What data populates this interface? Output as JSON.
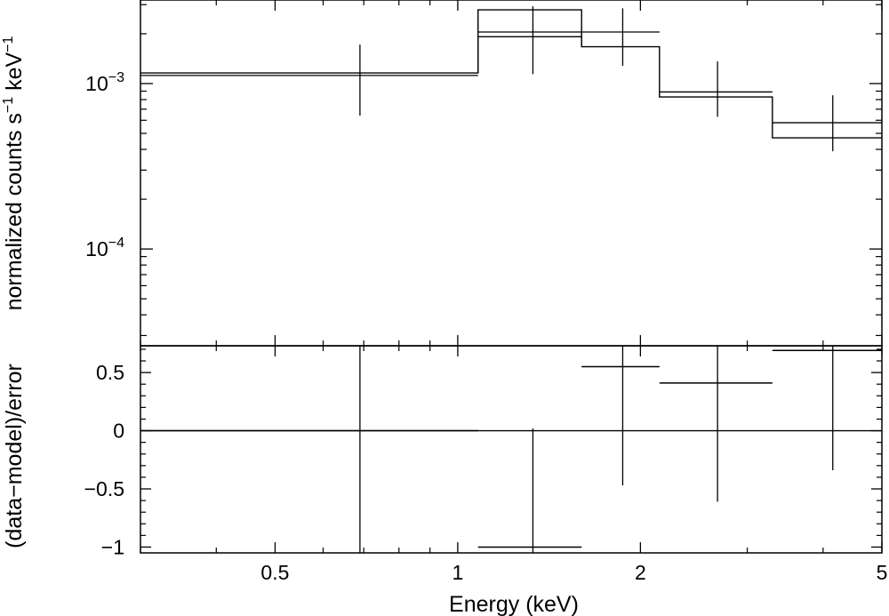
{
  "chart_data": [
    {
      "type": "scatter",
      "panel": "spectrum",
      "ylabel_parts": [
        "normalized counts s",
        "−1",
        " keV",
        "−1"
      ],
      "xscale": "log",
      "yscale": "log",
      "xlim": [
        0.3,
        5
      ],
      "ylim": [
        2.6e-05,
        0.0032
      ],
      "y_ticks": [
        {
          "value": 0.001,
          "base": "10",
          "exp": "−3"
        },
        {
          "value": 0.0001,
          "base": "10",
          "exp": "−4"
        }
      ],
      "data_points": [
        {
          "x": 0.69,
          "xlo": 0.3,
          "xhi": 1.08,
          "y": 0.00112,
          "ylo": 0.00064,
          "yhi": 0.00172
        },
        {
          "x": 1.33,
          "xlo": 1.08,
          "xhi": 1.6,
          "y": 0.00205,
          "ylo": 0.00114,
          "yhi": 0.00293
        },
        {
          "x": 1.87,
          "xlo": 1.6,
          "xhi": 2.15,
          "y": 0.00205,
          "ylo": 0.00128,
          "yhi": 0.00285
        },
        {
          "x": 2.68,
          "xlo": 2.15,
          "xhi": 3.3,
          "y": 0.00089,
          "ylo": 0.00063,
          "yhi": 0.00136
        },
        {
          "x": 4.15,
          "xlo": 3.3,
          "xhi": 5.0,
          "y": 0.00058,
          "ylo": 0.00039,
          "yhi": 0.00085
        }
      ],
      "model_steps": [
        {
          "xlo": 0.3,
          "xhi": 1.08,
          "y": 0.00116
        },
        {
          "xlo": 1.08,
          "xhi": 1.6,
          "y": 0.00192
        },
        {
          "xlo": 1.6,
          "xhi": 2.15,
          "y": 0.00167
        },
        {
          "xlo": 2.15,
          "xhi": 3.3,
          "y": 0.00083
        },
        {
          "xlo": 3.3,
          "xhi": 5.0,
          "y": 0.00047
        }
      ],
      "model_upper_step": {
        "xlo": 1.08,
        "xhi": 1.6,
        "y": 0.00279
      }
    },
    {
      "type": "scatter",
      "panel": "residuals",
      "ylabel": "(data−model)/error",
      "xlabel": "Energy (keV)",
      "xscale": "log",
      "xlim": [
        0.3,
        5
      ],
      "ylim": [
        -1.05,
        0.73
      ],
      "x_ticks": [
        {
          "value": 0.5,
          "label": "0.5"
        },
        {
          "value": 1,
          "label": "1"
        },
        {
          "value": 2,
          "label": "2"
        },
        {
          "value": 5,
          "label": "5"
        }
      ],
      "y_ticks": [
        {
          "value": 0.5,
          "label": "0.5"
        },
        {
          "value": 0,
          "label": "0"
        },
        {
          "value": -0.5,
          "label": "−0.5"
        },
        {
          "value": -1,
          "label": "−1"
        }
      ],
      "zero_line": 0,
      "data_points": [
        {
          "x": 0.69,
          "xlo": 0.3,
          "xhi": 1.08,
          "y": 0.0,
          "ylo": -1.05,
          "yhi": 0.73
        },
        {
          "x": 1.33,
          "xlo": 1.08,
          "xhi": 1.6,
          "y": -1.0,
          "ylo": -1.05,
          "yhi": 0.02
        },
        {
          "x": 1.87,
          "xlo": 1.6,
          "xhi": 2.15,
          "y": 0.55,
          "ylo": -0.47,
          "yhi": 0.73
        },
        {
          "x": 2.68,
          "xlo": 2.15,
          "xhi": 3.3,
          "y": 0.41,
          "ylo": -0.61,
          "yhi": 0.73
        },
        {
          "x": 4.15,
          "xlo": 3.3,
          "xhi": 5.0,
          "y": 0.69,
          "ylo": -0.34,
          "yhi": 0.73
        }
      ]
    }
  ]
}
